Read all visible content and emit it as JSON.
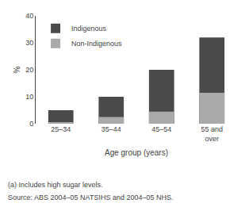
{
  "chart_data": {
    "type": "bar",
    "categories": [
      "25–34",
      "35–44",
      "45–54",
      "55 and\nover"
    ],
    "series": [
      {
        "name": "Indigenous",
        "color": "#4a4a4a",
        "values": [
          5,
          10,
          20,
          32
        ]
      },
      {
        "name": "Non-Indigenous",
        "color": "#aaaaaa",
        "values": [
          0.5,
          2.5,
          4.5,
          11.5
        ]
      }
    ],
    "xlabel": "Age group (years)",
    "ylabel": "%",
    "ylim": [
      0,
      40
    ],
    "yticks": [
      0,
      10,
      20,
      30,
      40
    ],
    "grid": false,
    "legend": "upper left",
    "annotations": [
      "(a) Includes high sugar levels.",
      "Source: ABS 2004–05 NATSIHS and 2004–05 NHS."
    ]
  }
}
